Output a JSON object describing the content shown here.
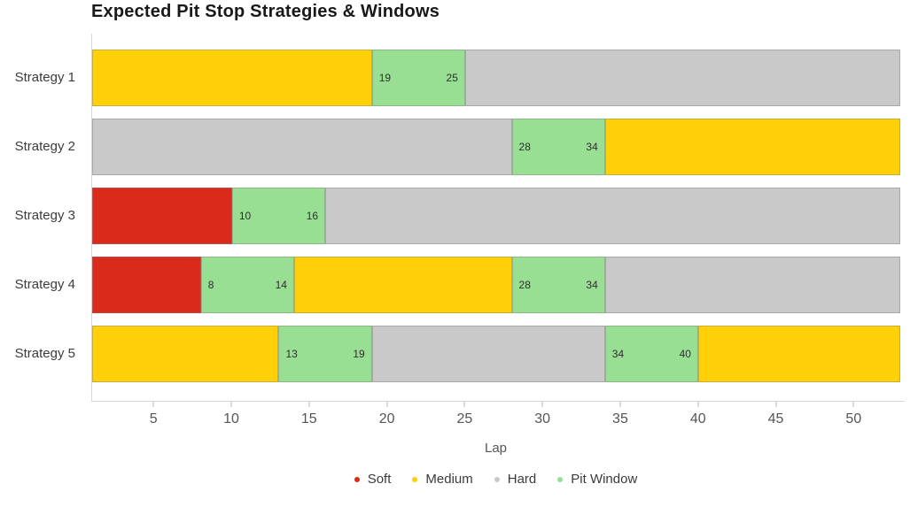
{
  "chart_data": {
    "type": "bar",
    "orientation": "horizontal",
    "title": "Expected Pit Stop Strategies & Windows",
    "xlabel": "Lap",
    "xlim": [
      1,
      53
    ],
    "xticks": [
      5,
      10,
      15,
      20,
      25,
      30,
      35,
      40,
      45,
      50
    ],
    "grid": false,
    "legend_position": "bottom-center",
    "compound_colors": {
      "Soft": "#d92a1c",
      "Medium": "#ffd008",
      "Hard": "#c9c9c9",
      "Pit Window": "#98de93"
    },
    "legend": [
      {
        "label": "Soft",
        "color": "#d92a1c"
      },
      {
        "label": "Medium",
        "color": "#ffd008"
      },
      {
        "label": "Hard",
        "color": "#c9c9c9"
      },
      {
        "label": "Pit Window",
        "color": "#98de93"
      }
    ],
    "categories": [
      "Strategy 1",
      "Strategy 2",
      "Strategy 3",
      "Strategy 4",
      "Strategy 5"
    ],
    "rows": [
      {
        "label": "Strategy 1",
        "segments": [
          {
            "compound": "Medium",
            "start": 1,
            "end": 19
          },
          {
            "compound": "Pit Window",
            "start": 19,
            "end": 25,
            "start_label": "19",
            "end_label": "25"
          },
          {
            "compound": "Hard",
            "start": 25,
            "end": 53
          }
        ]
      },
      {
        "label": "Strategy 2",
        "segments": [
          {
            "compound": "Hard",
            "start": 1,
            "end": 28
          },
          {
            "compound": "Pit Window",
            "start": 28,
            "end": 34,
            "start_label": "28",
            "end_label": "34"
          },
          {
            "compound": "Medium",
            "start": 34,
            "end": 53
          }
        ]
      },
      {
        "label": "Strategy 3",
        "segments": [
          {
            "compound": "Soft",
            "start": 1,
            "end": 10
          },
          {
            "compound": "Pit Window",
            "start": 10,
            "end": 16,
            "start_label": "10",
            "end_label": "16"
          },
          {
            "compound": "Hard",
            "start": 16,
            "end": 53
          }
        ]
      },
      {
        "label": "Strategy 4",
        "segments": [
          {
            "compound": "Soft",
            "start": 1,
            "end": 8
          },
          {
            "compound": "Pit Window",
            "start": 8,
            "end": 14,
            "start_label": "8",
            "end_label": "14"
          },
          {
            "compound": "Medium",
            "start": 14,
            "end": 28
          },
          {
            "compound": "Pit Window",
            "start": 28,
            "end": 34,
            "start_label": "28",
            "end_label": "34"
          },
          {
            "compound": "Hard",
            "start": 34,
            "end": 53
          }
        ]
      },
      {
        "label": "Strategy 5",
        "segments": [
          {
            "compound": "Medium",
            "start": 1,
            "end": 13
          },
          {
            "compound": "Pit Window",
            "start": 13,
            "end": 19,
            "start_label": "13",
            "end_label": "19"
          },
          {
            "compound": "Hard",
            "start": 19,
            "end": 34
          },
          {
            "compound": "Pit Window",
            "start": 34,
            "end": 40,
            "start_label": "34",
            "end_label": "40"
          },
          {
            "compound": "Medium",
            "start": 40,
            "end": 53
          }
        ]
      }
    ]
  }
}
